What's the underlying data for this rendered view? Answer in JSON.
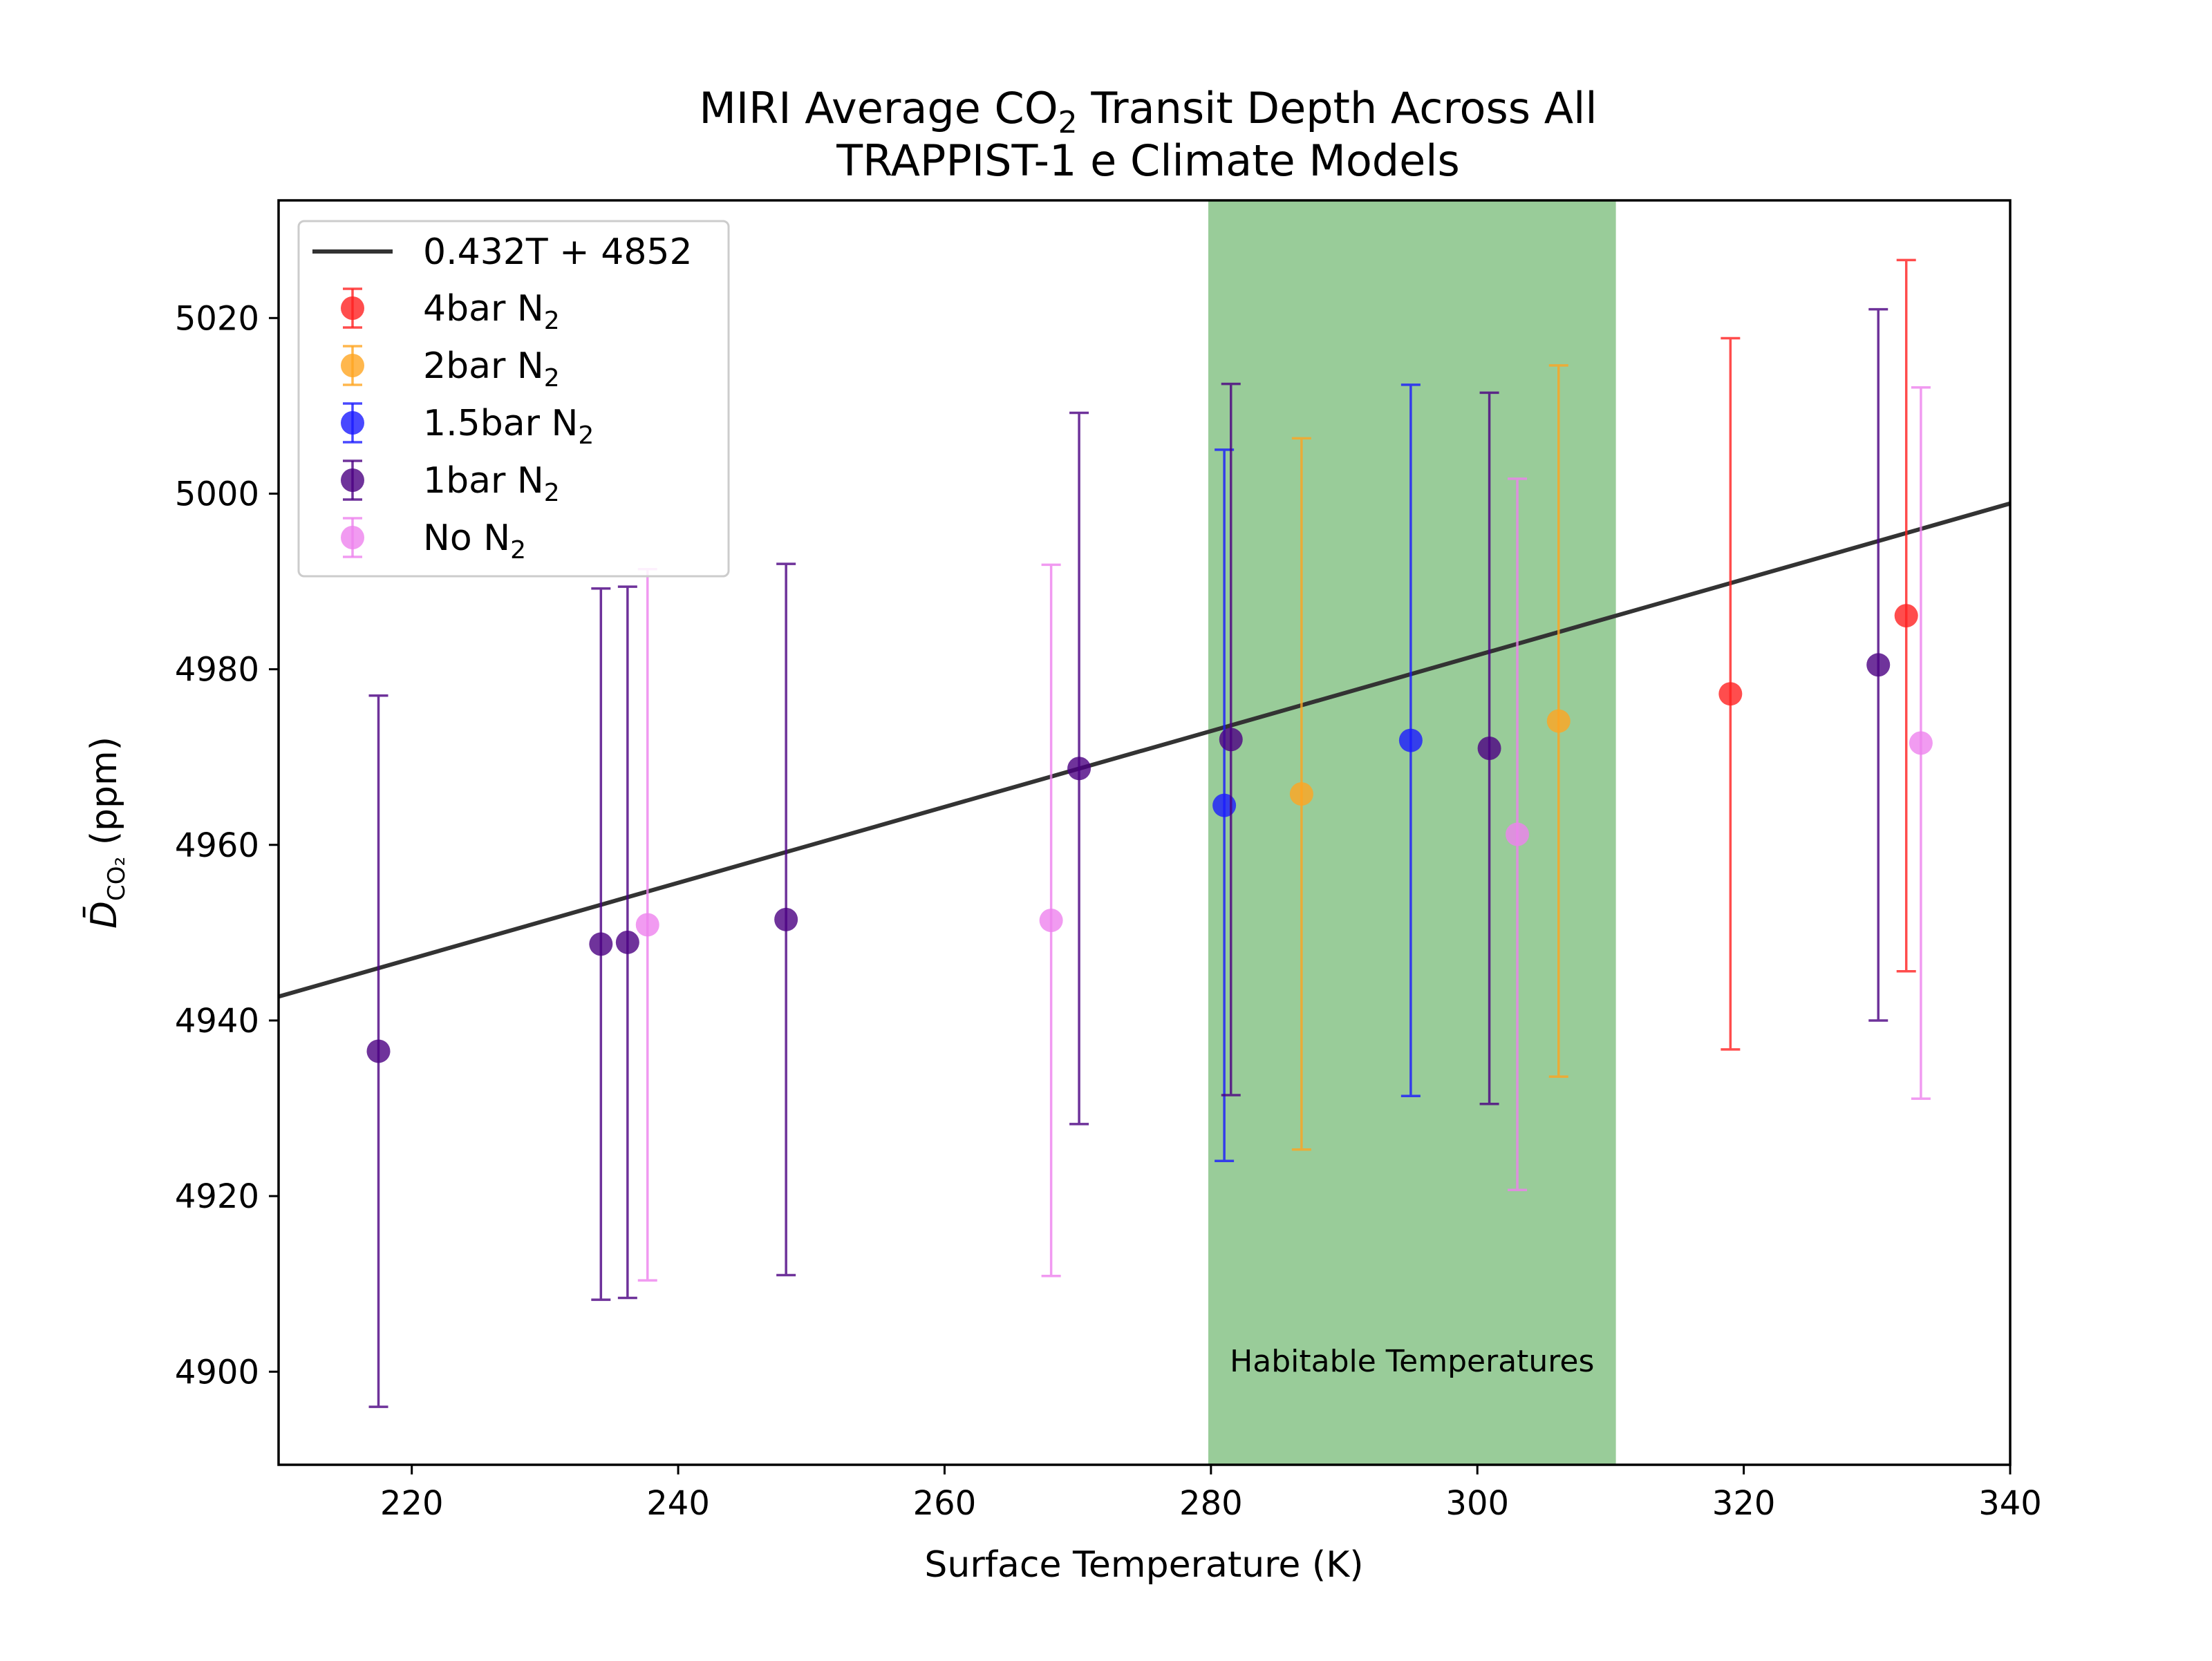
{
  "chart_data": {
    "type": "scatter",
    "title": {
      "line1_before": "MIRI Average CO",
      "line1_sub": "2",
      "line1_after": " Transit Depth Across All",
      "line2": "TRAPPIST-1 e Climate Models"
    },
    "xlabel": "Surface Temperature (K)",
    "ylabel": {
      "symbol": "D̄",
      "sub": "CO₂",
      "unit": " (ppm)"
    },
    "xlim": [
      210,
      340
    ],
    "ylim": [
      4889.4,
      5033.4
    ],
    "xticks": [
      220,
      240,
      260,
      280,
      300,
      320,
      340
    ],
    "yticks": [
      4900,
      4920,
      4940,
      4960,
      4980,
      5000,
      5020
    ],
    "grid": false,
    "legend_position": "upper-left",
    "shaded_region": {
      "x_range": [
        279.8,
        310.4
      ],
      "color": "#99cc99",
      "label": "Habitable Temperatures"
    },
    "fit_line": {
      "label": "0.432T + 4852",
      "slope": 0.432,
      "intercept": 4852,
      "color": "#333333"
    },
    "series": [
      {
        "name": "4bar N",
        "name_sub": "2",
        "color": "#ff2020",
        "points": [
          {
            "x": 319.0,
            "y": 4977.2,
            "err": 40.5
          },
          {
            "x": 332.2,
            "y": 4986.1,
            "err": 40.5
          }
        ]
      },
      {
        "name": "2bar N",
        "name_sub": "2",
        "color": "#ffa520",
        "points": [
          {
            "x": 286.8,
            "y": 4965.8,
            "err": 40.5
          },
          {
            "x": 306.1,
            "y": 4974.1,
            "err": 40.5
          }
        ]
      },
      {
        "name": "1.5bar N",
        "name_sub": "2",
        "color": "#1a1aff",
        "points": [
          {
            "x": 281.0,
            "y": 4964.5,
            "err": 40.5
          },
          {
            "x": 295.0,
            "y": 4971.9,
            "err": 40.5
          }
        ]
      },
      {
        "name": "1bar N",
        "name_sub": "2",
        "color": "#4b0082",
        "points": [
          {
            "x": 217.5,
            "y": 4936.5,
            "err": 40.5
          },
          {
            "x": 234.2,
            "y": 4948.7,
            "err": 40.5
          },
          {
            "x": 236.2,
            "y": 4948.9,
            "err": 40.5
          },
          {
            "x": 248.1,
            "y": 4951.5,
            "err": 40.5
          },
          {
            "x": 270.1,
            "y": 4968.7,
            "err": 40.5
          },
          {
            "x": 281.5,
            "y": 4972.0,
            "err": 40.5
          },
          {
            "x": 300.9,
            "y": 4971.0,
            "err": 40.5
          },
          {
            "x": 330.1,
            "y": 4980.5,
            "err": 40.5
          }
        ]
      },
      {
        "name": "No N",
        "name_sub": "2",
        "color": "#ee82ee",
        "points": [
          {
            "x": 237.7,
            "y": 4950.9,
            "err": 40.5
          },
          {
            "x": 268.0,
            "y": 4951.4,
            "err": 40.5
          },
          {
            "x": 303.0,
            "y": 4961.2,
            "err": 40.5
          },
          {
            "x": 333.3,
            "y": 4971.6,
            "err": 40.5
          }
        ]
      }
    ]
  }
}
